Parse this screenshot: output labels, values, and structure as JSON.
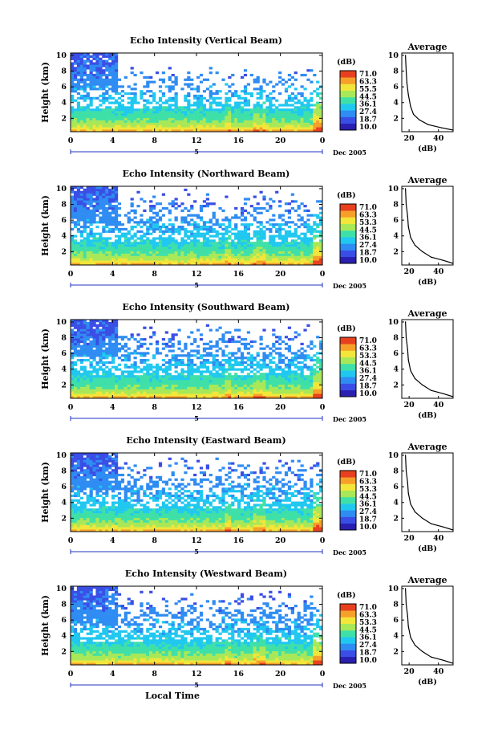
{
  "chart_data": [
    {
      "type": "heatmap",
      "title": "Echo Intensity (Vertical Beam)",
      "ylabel": "Height (km)",
      "xticks": [
        "0",
        "4",
        "8",
        "12",
        "16",
        "20",
        "0"
      ],
      "yticks": [
        "2",
        "4",
        "6",
        "8",
        "10"
      ],
      "xlim": [
        0,
        24
      ],
      "ylim": [
        0.3,
        10.3
      ],
      "date_axis": {
        "label": "5",
        "end": "Dec 2005"
      },
      "colorbar": {
        "unit": "(dB)",
        "ticks": [
          "71.0",
          "63.3",
          "55.5",
          "44.5",
          "36.1",
          "27.4",
          "18.7",
          "10.0"
        ],
        "range": [
          10.0,
          71.0
        ]
      },
      "profile": {
        "title": "Average",
        "xlabel": "(dB)",
        "xticks": [
          "20",
          "40"
        ],
        "yticks": [
          "2",
          "4",
          "6",
          "8",
          "10"
        ],
        "xlim": [
          15,
          50
        ],
        "points": [
          [
            50,
            0.5
          ],
          [
            42,
            0.8
          ],
          [
            33,
            1.2
          ],
          [
            27,
            1.8
          ],
          [
            23,
            2.5
          ],
          [
            21,
            3.5
          ],
          [
            19.5,
            5.0
          ],
          [
            18.5,
            6.5
          ],
          [
            18,
            8.0
          ],
          [
            17.5,
            10.0
          ]
        ]
      }
    },
    {
      "type": "heatmap",
      "title": "Echo Intensity (Northward Beam)",
      "ylabel": "Height (km)",
      "xticks": [
        "0",
        "4",
        "8",
        "12",
        "16",
        "20",
        "0"
      ],
      "yticks": [
        "2",
        "4",
        "6",
        "8",
        "10"
      ],
      "xlim": [
        0,
        24
      ],
      "ylim": [
        0.3,
        10.3
      ],
      "date_axis": {
        "label": "5",
        "end": "Dec 2005"
      },
      "colorbar": {
        "unit": "(dB)",
        "ticks": [
          "71.0",
          "63.3",
          "53.3",
          "44.5",
          "36.1",
          "27.4",
          "18.7",
          "10.0"
        ],
        "range": [
          10.0,
          71.0
        ]
      },
      "profile": {
        "title": "Average",
        "xlabel": "(dB)",
        "xticks": [
          "20",
          "40"
        ],
        "yticks": [
          "2",
          "4",
          "6",
          "8",
          "10"
        ],
        "xlim": [
          15,
          50
        ],
        "points": [
          [
            50,
            0.5
          ],
          [
            43,
            0.9
          ],
          [
            35,
            1.3
          ],
          [
            29,
            2.0
          ],
          [
            24,
            2.8
          ],
          [
            21,
            3.8
          ],
          [
            19.5,
            5.2
          ],
          [
            19,
            6.5
          ],
          [
            18,
            8.0
          ],
          [
            17.5,
            10.0
          ]
        ]
      }
    },
    {
      "type": "heatmap",
      "title": "Echo Intensity (Southward Beam)",
      "ylabel": "Height (km)",
      "xticks": [
        "0",
        "4",
        "8",
        "12",
        "16",
        "20",
        "0"
      ],
      "yticks": [
        "2",
        "4",
        "6",
        "8",
        "10"
      ],
      "xlim": [
        0,
        24
      ],
      "ylim": [
        0.3,
        10.3
      ],
      "date_axis": {
        "label": "5",
        "end": "Dec 2005"
      },
      "colorbar": {
        "unit": "(dB)",
        "ticks": [
          "71.0",
          "63.3",
          "53.3",
          "44.5",
          "36.1",
          "27.4",
          "18.7",
          "10.0"
        ],
        "range": [
          10.0,
          71.0
        ]
      },
      "profile": {
        "title": "Average",
        "xlabel": "(dB)",
        "xticks": [
          "20",
          "40"
        ],
        "yticks": [
          "2",
          "4",
          "6",
          "8",
          "10"
        ],
        "xlim": [
          15,
          50
        ],
        "points": [
          [
            50,
            0.5
          ],
          [
            43,
            0.9
          ],
          [
            35,
            1.3
          ],
          [
            29,
            2.0
          ],
          [
            24,
            2.8
          ],
          [
            21,
            3.8
          ],
          [
            19.5,
            5.2
          ],
          [
            19,
            6.5
          ],
          [
            18,
            8.0
          ],
          [
            17.5,
            10.0
          ]
        ]
      }
    },
    {
      "type": "heatmap",
      "title": "Echo Intensity (Eastward Beam)",
      "ylabel": "Height (km)",
      "xticks": [
        "0",
        "4",
        "8",
        "12",
        "16",
        "20",
        "0"
      ],
      "yticks": [
        "2",
        "4",
        "6",
        "8",
        "10"
      ],
      "xlim": [
        0,
        24
      ],
      "ylim": [
        0.3,
        10.3
      ],
      "date_axis": {
        "label": "5",
        "end": "Dec 2005"
      },
      "colorbar": {
        "unit": "(dB)",
        "ticks": [
          "71.0",
          "63.3",
          "53.3",
          "44.5",
          "36.1",
          "27.4",
          "18.7",
          "10.0"
        ],
        "range": [
          10.0,
          71.0
        ]
      },
      "profile": {
        "title": "Average",
        "xlabel": "(dB)",
        "xticks": [
          "20",
          "40"
        ],
        "yticks": [
          "2",
          "4",
          "6",
          "8",
          "10"
        ],
        "xlim": [
          15,
          50
        ],
        "points": [
          [
            50,
            0.5
          ],
          [
            43,
            0.9
          ],
          [
            35,
            1.3
          ],
          [
            29,
            2.0
          ],
          [
            24,
            2.8
          ],
          [
            21,
            3.8
          ],
          [
            19.5,
            5.2
          ],
          [
            19,
            6.5
          ],
          [
            18,
            8.0
          ],
          [
            17.5,
            10.0
          ]
        ]
      }
    },
    {
      "type": "heatmap",
      "title": "Echo Intensity (Westward Beam)",
      "ylabel": "Height (km)",
      "xlabel": "Local Time",
      "xticks": [
        "0",
        "4",
        "8",
        "12",
        "16",
        "20",
        "0"
      ],
      "yticks": [
        "2",
        "4",
        "6",
        "8",
        "10"
      ],
      "xlim": [
        0,
        24
      ],
      "ylim": [
        0.3,
        10.3
      ],
      "date_axis": {
        "label": "5",
        "end": "Dec 2005"
      },
      "colorbar": {
        "unit": "(dB)",
        "ticks": [
          "71.0",
          "63.3",
          "53.3",
          "44.5",
          "36.1",
          "27.4",
          "18.7",
          "10.0"
        ],
        "range": [
          10.0,
          71.0
        ]
      },
      "profile": {
        "title": "Average",
        "xlabel": "(dB)",
        "xticks": [
          "20",
          "40"
        ],
        "yticks": [
          "2",
          "4",
          "6",
          "8",
          "10"
        ],
        "xlim": [
          15,
          50
        ],
        "points": [
          [
            50,
            0.5
          ],
          [
            43,
            0.9
          ],
          [
            35,
            1.3
          ],
          [
            29,
            2.0
          ],
          [
            24,
            2.8
          ],
          [
            21,
            3.8
          ],
          [
            19.5,
            5.2
          ],
          [
            19,
            6.5
          ],
          [
            18,
            8.0
          ],
          [
            17.5,
            10.0
          ]
        ]
      }
    }
  ],
  "colors": {
    "scale": [
      "#2a1fb0",
      "#3a4ee6",
      "#2f8cf2",
      "#20c8f0",
      "#3fe0a8",
      "#a8e858",
      "#f2e63a",
      "#f6a02a",
      "#e8401e"
    ],
    "background": "#ffffff",
    "ink": "#000000"
  }
}
